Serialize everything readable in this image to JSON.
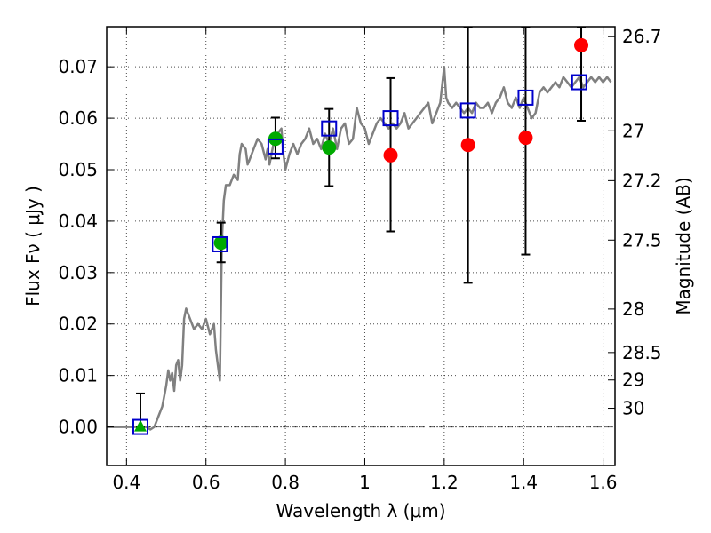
{
  "chart_data": {
    "type": "scatter",
    "xlabel": "Wavelength  λ (μm)",
    "ylabel": "Flux  Fν  ( μJy )",
    "ylabel_right": "Magnitude (AB)",
    "xlim": [
      0.35,
      1.63
    ],
    "ylim": [
      -0.0075,
      0.0778
    ],
    "x_ticks": [
      0.4,
      0.6,
      0.8,
      1.0,
      1.2,
      1.4,
      1.6
    ],
    "x_tick_labels": [
      "0.4",
      "0.6",
      "0.8",
      "1",
      "1.2",
      "1.4",
      "1.6"
    ],
    "y_ticks": [
      0.0,
      0.01,
      0.02,
      0.03,
      0.04,
      0.05,
      0.06,
      0.07
    ],
    "y_tick_labels": [
      "0.00",
      "0.01",
      "0.02",
      "0.03",
      "0.04",
      "0.05",
      "0.06",
      "0.07"
    ],
    "right_ticks": [
      {
        "label": "26.7",
        "mag": 26.7
      },
      {
        "label": "27",
        "mag": 27.0
      },
      {
        "label": "27.2",
        "mag": 27.2
      },
      {
        "label": "27.5",
        "mag": 27.5
      },
      {
        "label": "28",
        "mag": 28.0
      },
      {
        "label": "28.5",
        "mag": 28.5
      },
      {
        "label": "29",
        "mag": 29.0
      },
      {
        "label": "30",
        "mag": 30.0
      }
    ],
    "grid": true,
    "colors": {
      "spectrum": "#808080",
      "model_points": "#0000cc",
      "detections": "#00aa00",
      "upper_limits": "#ff0000",
      "errorbars": "#000000"
    },
    "series": [
      {
        "kind": "line",
        "points": [
          [
            0.35,
            0.0
          ],
          [
            0.45,
            0.0
          ],
          [
            0.46,
            -0.0005
          ],
          [
            0.47,
            0.0
          ],
          [
            0.48,
            0.002
          ],
          [
            0.49,
            0.004
          ],
          [
            0.5,
            0.008
          ],
          [
            0.505,
            0.011
          ],
          [
            0.51,
            0.009
          ],
          [
            0.515,
            0.0105
          ],
          [
            0.52,
            0.007
          ],
          [
            0.525,
            0.012
          ],
          [
            0.53,
            0.013
          ],
          [
            0.535,
            0.009
          ],
          [
            0.54,
            0.012
          ],
          [
            0.545,
            0.021
          ],
          [
            0.55,
            0.023
          ],
          [
            0.56,
            0.021
          ],
          [
            0.57,
            0.019
          ],
          [
            0.58,
            0.02
          ],
          [
            0.59,
            0.019
          ],
          [
            0.6,
            0.021
          ],
          [
            0.61,
            0.018
          ],
          [
            0.62,
            0.02
          ],
          [
            0.625,
            0.015
          ],
          [
            0.63,
            0.012
          ],
          [
            0.635,
            0.009
          ],
          [
            0.64,
            0.036
          ],
          [
            0.645,
            0.044
          ],
          [
            0.65,
            0.047
          ],
          [
            0.66,
            0.047
          ],
          [
            0.67,
            0.049
          ],
          [
            0.68,
            0.048
          ],
          [
            0.685,
            0.053
          ],
          [
            0.69,
            0.055
          ],
          [
            0.7,
            0.054
          ],
          [
            0.705,
            0.051
          ],
          [
            0.71,
            0.052
          ],
          [
            0.72,
            0.054
          ],
          [
            0.73,
            0.056
          ],
          [
            0.74,
            0.055
          ],
          [
            0.75,
            0.052
          ],
          [
            0.755,
            0.054
          ],
          [
            0.76,
            0.051
          ],
          [
            0.77,
            0.055
          ],
          [
            0.78,
            0.057
          ],
          [
            0.79,
            0.058
          ],
          [
            0.795,
            0.053
          ],
          [
            0.8,
            0.05
          ],
          [
            0.81,
            0.053
          ],
          [
            0.82,
            0.055
          ],
          [
            0.83,
            0.053
          ],
          [
            0.84,
            0.055
          ],
          [
            0.85,
            0.056
          ],
          [
            0.86,
            0.058
          ],
          [
            0.87,
            0.055
          ],
          [
            0.88,
            0.056
          ],
          [
            0.89,
            0.054
          ],
          [
            0.9,
            0.057
          ],
          [
            0.91,
            0.055
          ],
          [
            0.92,
            0.058
          ],
          [
            0.93,
            0.054
          ],
          [
            0.94,
            0.058
          ],
          [
            0.95,
            0.059
          ],
          [
            0.96,
            0.055
          ],
          [
            0.97,
            0.056
          ],
          [
            0.98,
            0.062
          ],
          [
            0.99,
            0.059
          ],
          [
            1.0,
            0.058
          ],
          [
            1.01,
            0.055
          ],
          [
            1.02,
            0.057
          ],
          [
            1.03,
            0.059
          ],
          [
            1.04,
            0.06
          ],
          [
            1.05,
            0.059
          ],
          [
            1.06,
            0.058
          ],
          [
            1.07,
            0.059
          ],
          [
            1.08,
            0.058
          ],
          [
            1.09,
            0.059
          ],
          [
            1.1,
            0.061
          ],
          [
            1.11,
            0.058
          ],
          [
            1.12,
            0.059
          ],
          [
            1.13,
            0.06
          ],
          [
            1.14,
            0.061
          ],
          [
            1.15,
            0.062
          ],
          [
            1.16,
            0.063
          ],
          [
            1.17,
            0.059
          ],
          [
            1.18,
            0.061
          ],
          [
            1.19,
            0.063
          ],
          [
            1.2,
            0.07
          ],
          [
            1.205,
            0.064
          ],
          [
            1.21,
            0.063
          ],
          [
            1.22,
            0.062
          ],
          [
            1.23,
            0.063
          ],
          [
            1.24,
            0.062
          ],
          [
            1.25,
            0.061
          ],
          [
            1.26,
            0.062
          ],
          [
            1.27,
            0.061
          ],
          [
            1.28,
            0.063
          ],
          [
            1.29,
            0.062
          ],
          [
            1.3,
            0.062
          ],
          [
            1.31,
            0.063
          ],
          [
            1.32,
            0.061
          ],
          [
            1.33,
            0.063
          ],
          [
            1.34,
            0.064
          ],
          [
            1.35,
            0.066
          ],
          [
            1.36,
            0.063
          ],
          [
            1.37,
            0.062
          ],
          [
            1.38,
            0.064
          ],
          [
            1.39,
            0.062
          ],
          [
            1.4,
            0.064
          ],
          [
            1.41,
            0.062
          ],
          [
            1.42,
            0.06
          ],
          [
            1.43,
            0.061
          ],
          [
            1.44,
            0.065
          ],
          [
            1.45,
            0.066
          ],
          [
            1.46,
            0.065
          ],
          [
            1.47,
            0.066
          ],
          [
            1.48,
            0.067
          ],
          [
            1.49,
            0.066
          ],
          [
            1.5,
            0.068
          ],
          [
            1.51,
            0.067
          ],
          [
            1.52,
            0.066
          ],
          [
            1.53,
            0.067
          ],
          [
            1.54,
            0.068
          ],
          [
            1.55,
            0.066
          ],
          [
            1.56,
            0.067
          ],
          [
            1.57,
            0.068
          ],
          [
            1.58,
            0.067
          ],
          [
            1.59,
            0.068
          ],
          [
            1.6,
            0.067
          ],
          [
            1.61,
            0.068
          ],
          [
            1.62,
            0.067
          ]
        ]
      },
      {
        "kind": "model-squares",
        "points": [
          [
            0.435,
            0.0
          ],
          [
            0.635,
            0.0355
          ],
          [
            0.775,
            0.0545
          ],
          [
            0.91,
            0.058
          ],
          [
            1.065,
            0.06
          ],
          [
            1.26,
            0.0615
          ],
          [
            1.405,
            0.064
          ],
          [
            1.54,
            0.067
          ]
        ]
      },
      {
        "kind": "detections",
        "points": [
          {
            "x": 0.435,
            "y": 0.0,
            "err": [
              0.0,
              0.0065
            ],
            "marker": "triangle"
          },
          {
            "x": 0.638,
            "y": 0.0358,
            "err": [
              0.032,
              0.0397
            ],
            "marker": "circle"
          },
          {
            "x": 0.775,
            "y": 0.056,
            "err": [
              0.0522,
              0.0601
            ],
            "marker": "circle"
          },
          {
            "x": 0.91,
            "y": 0.0543,
            "err": [
              0.0468,
              0.0618
            ],
            "marker": "circle"
          }
        ]
      },
      {
        "kind": "upper-limits",
        "points": [
          {
            "x": 1.065,
            "y": 0.0528,
            "err": [
              0.038,
              0.0678
            ]
          },
          {
            "x": 1.26,
            "y": 0.0548,
            "err": [
              0.028,
              0.0778
            ]
          },
          {
            "x": 1.405,
            "y": 0.0562,
            "err": [
              0.0335,
              0.0778
            ]
          },
          {
            "x": 1.545,
            "y": 0.0742,
            "err": [
              0.0595,
              0.0778
            ]
          }
        ]
      }
    ]
  }
}
